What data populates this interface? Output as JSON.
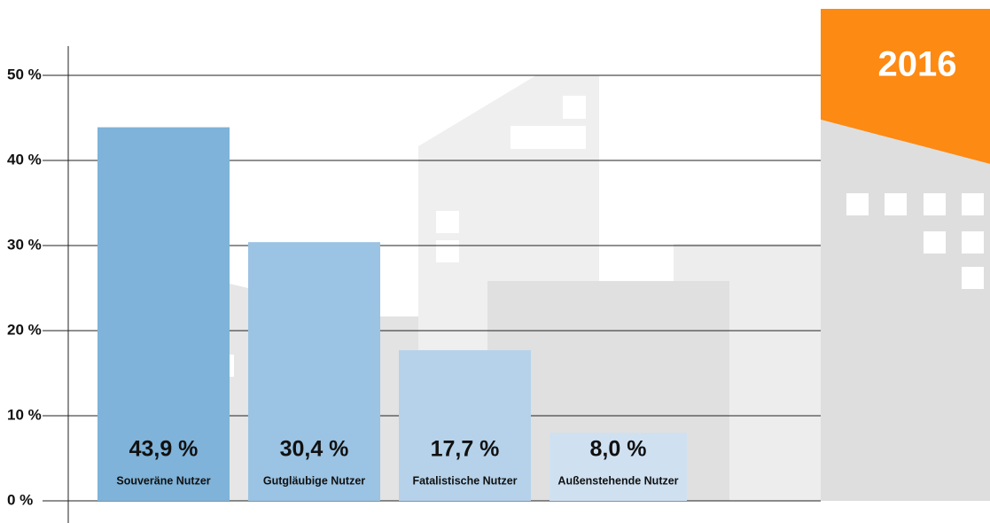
{
  "chart_data": {
    "type": "bar",
    "annotation": "2016",
    "categories": [
      "Souveräne Nutzer",
      "Gutgläubige Nutzer",
      "Fatalistische Nutzer",
      "Außenstehende Nutzer"
    ],
    "values": [
      43.9,
      30.4,
      17.7,
      8.0
    ],
    "value_labels": [
      "43,9 %",
      "30,4 %",
      "17,7 %",
      "8,0 %"
    ],
    "colors": [
      "#7fb3d9",
      "#9bc3e3",
      "#b5d2ea",
      "#cfe1f1"
    ],
    "ylim": [
      0,
      50
    ],
    "yticks": [
      {
        "value": 0,
        "label": "0 %"
      },
      {
        "value": 10,
        "label": "10 %"
      },
      {
        "value": 20,
        "label": "20 %"
      },
      {
        "value": 30,
        "label": "30 %"
      },
      {
        "value": 40,
        "label": "40 %"
      },
      {
        "value": 50,
        "label": "50 %"
      }
    ],
    "grid": true
  }
}
